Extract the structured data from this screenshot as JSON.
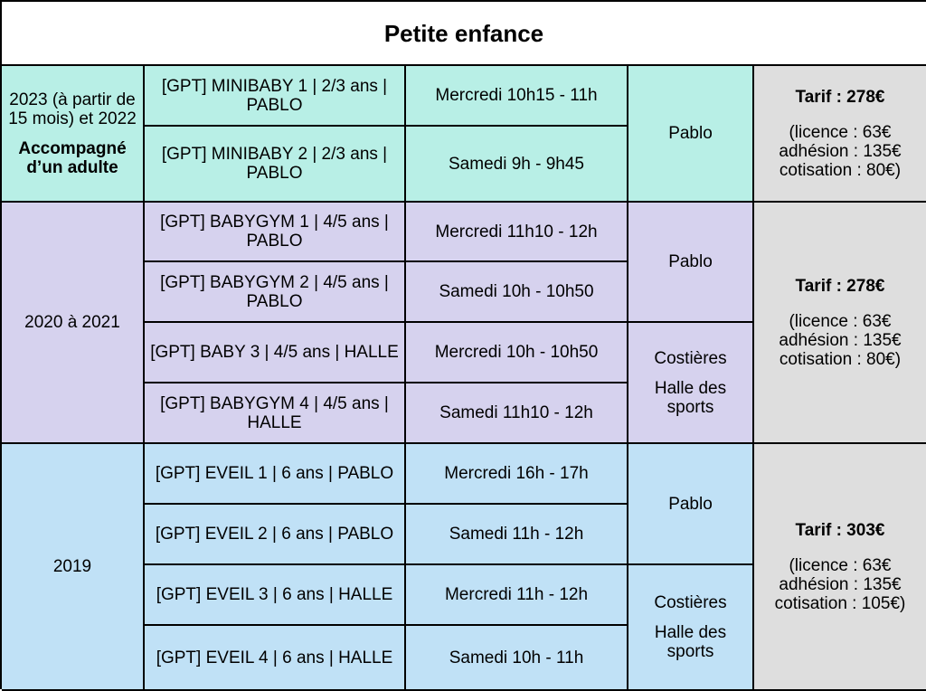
{
  "title": "Petite enfance",
  "groups": [
    {
      "age": "2023 (à partir de 15 mois) et 2022",
      "note": "Accompagné d’un adulte",
      "tarif": "Tarif : 278€",
      "tarif_details": [
        "(licence : 63€",
        "adhésion : 135€",
        "cotisation : 80€)"
      ],
      "rows": [
        {
          "course": "[GPT] MINIBABY 1 | 2/3 ans | PABLO",
          "time": "Mercredi 10h15 - 11h"
        },
        {
          "course": "[GPT] MINIBABY 2 | 2/3 ans | PABLO",
          "time": "Samedi 9h - 9h45"
        }
      ],
      "venues": [
        {
          "name": "Pablo"
        }
      ]
    },
    {
      "age": "2020 à 2021",
      "tarif": "Tarif : 278€",
      "tarif_details": [
        "(licence : 63€",
        "adhésion : 135€",
        "cotisation : 80€)"
      ],
      "rows": [
        {
          "course": "[GPT] BABYGYM 1 | 4/5 ans | PABLO",
          "time": "Mercredi 11h10 - 12h"
        },
        {
          "course": "[GPT] BABYGYM 2 | 4/5 ans | PABLO",
          "time": "Samedi 10h - 10h50"
        },
        {
          "course": "[GPT] BABY 3 | 4/5 ans | HALLE",
          "time": "Mercredi 10h - 10h50"
        },
        {
          "course": "[GPT] BABYGYM 4 | 4/5 ans | HALLE",
          "time": "Samedi 11h10 - 12h"
        }
      ],
      "venues": [
        {
          "name": "Pablo"
        },
        {
          "name": "Costières",
          "sub": "Halle des sports"
        }
      ]
    },
    {
      "age": "2019",
      "tarif": "Tarif : 303€",
      "tarif_details": [
        "(licence : 63€",
        "adhésion : 135€",
        "cotisation : 105€)"
      ],
      "rows": [
        {
          "course": "[GPT] EVEIL 1 | 6 ans | PABLO",
          "time": "Mercredi 16h - 17h"
        },
        {
          "course": "[GPT] EVEIL 2 | 6 ans | PABLO",
          "time": "Samedi 11h - 12h"
        },
        {
          "course": "[GPT] EVEIL 3 | 6 ans | HALLE",
          "time": "Mercredi 11h - 12h"
        },
        {
          "course": "[GPT] EVEIL 4 | 6 ans | HALLE",
          "time": "Samedi 10h - 11h"
        }
      ],
      "venues": [
        {
          "name": "Pablo"
        },
        {
          "name": "Costières",
          "sub": "Halle des sports"
        }
      ]
    }
  ]
}
